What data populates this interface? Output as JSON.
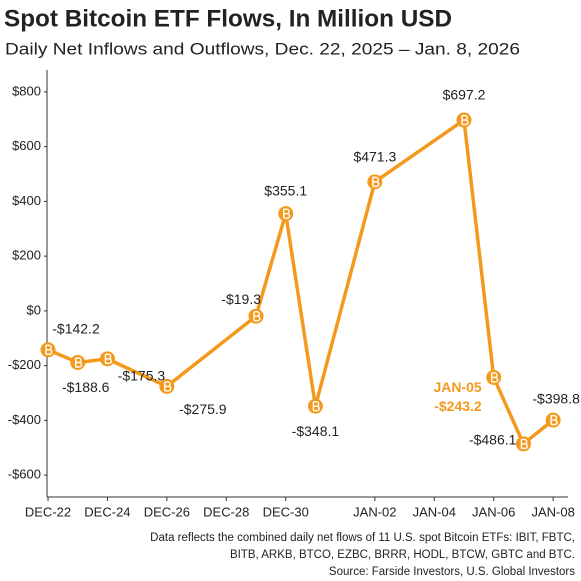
{
  "chart_data": {
    "type": "line",
    "title": "Spot Bitcoin ETF Flows, In Million USD",
    "subtitle": "Daily Net Inflows and Outflows, Dec. 22, 2025 – Jan. 8, 2026",
    "x": [
      0,
      1,
      2,
      4,
      7,
      8,
      9,
      11,
      14,
      15,
      16,
      17
    ],
    "values": [
      -142.2,
      -188.6,
      -175.3,
      -275.9,
      -19.3,
      355.1,
      -348.1,
      471.3,
      697.2,
      -243.2,
      -486.1,
      -398.8
    ],
    "value_labels": [
      "-$142.2",
      "-$188.6",
      "-$175.3",
      "-$275.9",
      "-$19.3",
      "$355.1",
      "-$348.1",
      "$471.3",
      "$697.2",
      "-$243.2",
      "-$486.1",
      "-$398.8"
    ],
    "label_colors": [
      "#222222",
      "#222222",
      "#222222",
      "#222222",
      "#222222",
      "#222222",
      "#222222",
      "#222222",
      "#222222",
      "#f39a1e",
      "#222222",
      "#222222"
    ],
    "annotation": "JAN-05",
    "color": "#f39a1e",
    "xlim": [
      0,
      17.5
    ],
    "xticks": [
      {
        "value": 0,
        "label": "DEC-22"
      },
      {
        "value": 2,
        "label": "DEC-24"
      },
      {
        "value": 4,
        "label": "DEC-26"
      },
      {
        "value": 6,
        "label": "DEC-28"
      },
      {
        "value": 8,
        "label": "DEC-30"
      },
      {
        "value": 11,
        "label": "JAN-02"
      },
      {
        "value": 13,
        "label": "JAN-04"
      },
      {
        "value": 15,
        "label": "JAN-06"
      },
      {
        "value": 17,
        "label": "JAN-08"
      }
    ],
    "ylim": [
      -680,
      880
    ],
    "yticks": [
      {
        "value": 800,
        "label": "$800"
      },
      {
        "value": 600,
        "label": "$600"
      },
      {
        "value": 400,
        "label": "$400"
      },
      {
        "value": 200,
        "label": "$200"
      },
      {
        "value": 0,
        "label": "$0"
      },
      {
        "value": -200,
        "label": "-$200"
      },
      {
        "value": -400,
        "label": "-$400"
      },
      {
        "value": -600,
        "label": "-$600"
      }
    ],
    "footnote": [
      "Data reflects the combined daily net flows of 11 U.S. spot Bitcoin ETFs: IBIT, FBTC,",
      "BITB, ARKB, BTCO, EZBC, BRRR, HODL, BTCW, GBTC and BTC.",
      "Source: Farside Investors, U.S. Global Investors"
    ]
  }
}
